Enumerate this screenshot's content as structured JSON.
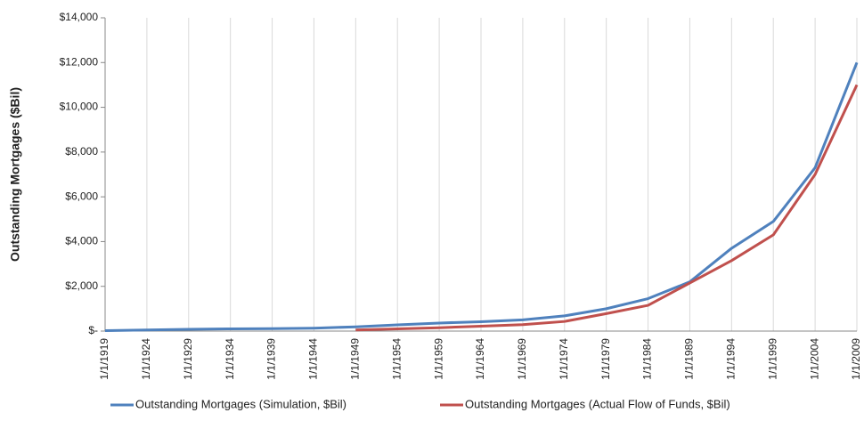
{
  "chart_data": {
    "type": "line",
    "y_label": "Outstanding Mortgages ($Bil)",
    "categories": [
      "1/1/1919",
      "1/1/1924",
      "1/1/1929",
      "1/1/1934",
      "1/1/1939",
      "1/1/1944",
      "1/1/1949",
      "1/1/1954",
      "1/1/1959",
      "1/1/1964",
      "1/1/1969",
      "1/1/1974",
      "1/1/1979",
      "1/1/1984",
      "1/1/1989",
      "1/1/1994",
      "1/1/1999",
      "1/1/2004",
      "1/1/2009"
    ],
    "series": [
      {
        "name": "Outstanding Mortgages (Simulation, $Bil)",
        "color": "#4f81bd",
        "values": [
          20,
          50,
          80,
          100,
          110,
          130,
          190,
          280,
          360,
          420,
          500,
          680,
          1000,
          1450,
          2200,
          3700,
          4900,
          7300,
          12000
        ]
      },
      {
        "name": "Outstanding Mortgages (Actual Flow of Funds, $Bil)",
        "color": "#c0504d",
        "values": [
          null,
          null,
          null,
          null,
          null,
          null,
          50,
          100,
          150,
          220,
          290,
          430,
          780,
          1150,
          2150,
          3150,
          4300,
          7000,
          11000
        ]
      }
    ],
    "ylim": [
      0,
      14000
    ],
    "yticks": [
      {
        "value": 0,
        "label": "$-"
      },
      {
        "value": 2000,
        "label": "$2,000"
      },
      {
        "value": 4000,
        "label": "$4,000"
      },
      {
        "value": 6000,
        "label": "$6,000"
      },
      {
        "value": 8000,
        "label": "$8,000"
      },
      {
        "value": 10000,
        "label": "$10,000"
      },
      {
        "value": 12000,
        "label": "$12,000"
      },
      {
        "value": 14000,
        "label": "$14,000"
      }
    ],
    "grid": "x",
    "legend": "bottom"
  }
}
